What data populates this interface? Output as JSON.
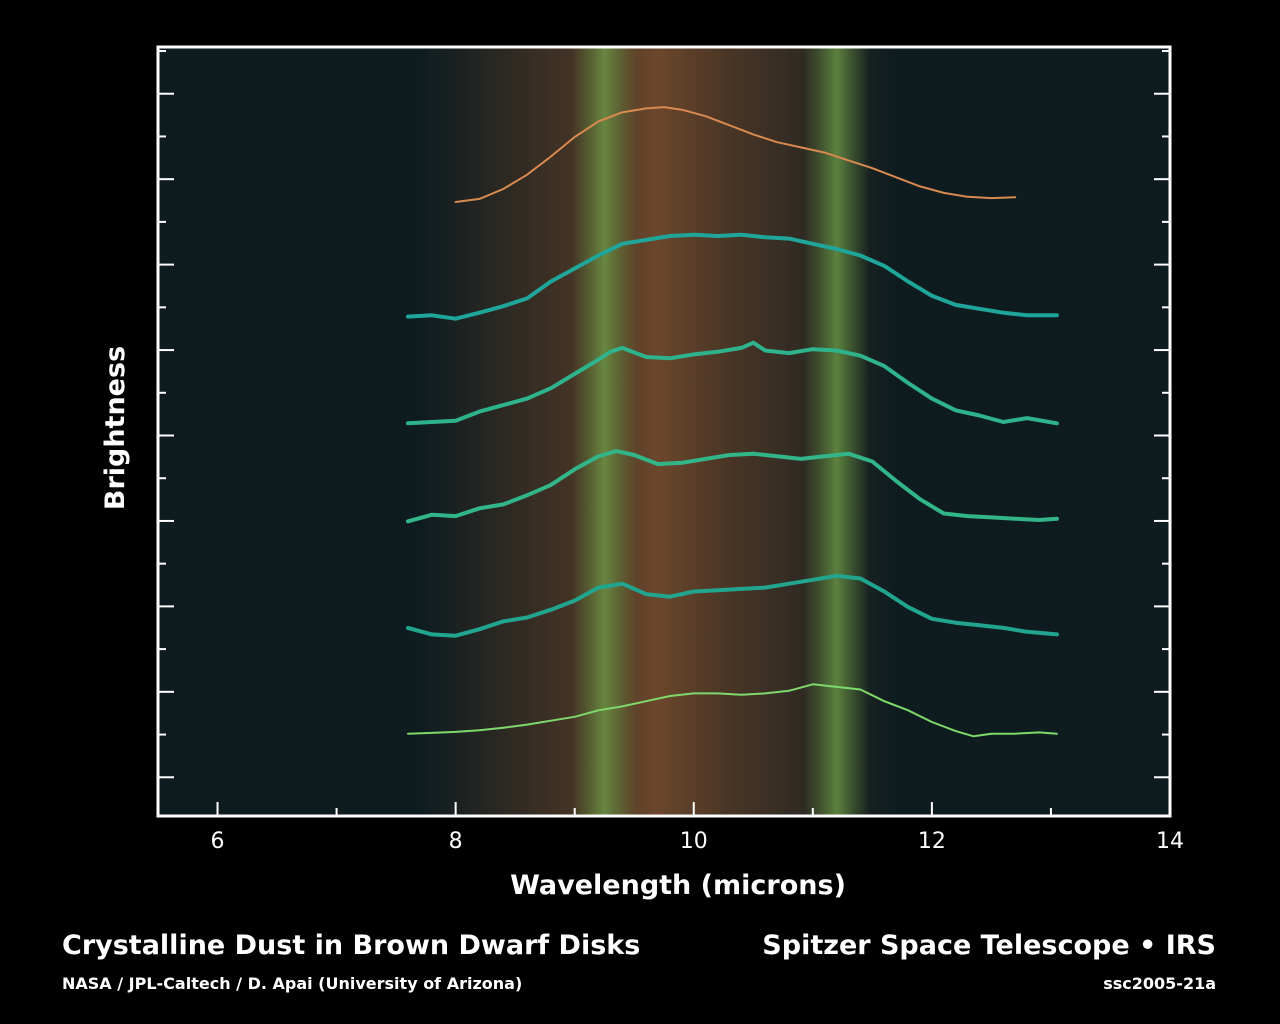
{
  "chart_data": {
    "type": "line",
    "title": "",
    "xlabel": "Wavelength (microns)",
    "ylabel": "Brightness",
    "xlim": [
      5.5,
      14
    ],
    "x_ticks": [
      6,
      8,
      10,
      12,
      14
    ],
    "y_ticks_shown": false,
    "legend": "none",
    "grid": false,
    "highlight_bands": [
      {
        "center": 9.7,
        "halfwidth": 2.0,
        "color": "#7a4a2a"
      },
      {
        "center": 9.25,
        "halfwidth": 0.28,
        "color": "#5f8f3f"
      },
      {
        "center": 11.2,
        "halfwidth": 0.28,
        "color": "#5f8f3f"
      }
    ],
    "series": [
      {
        "color": "#d88a50",
        "thin": true,
        "points": [
          [
            8.0,
            0.5
          ],
          [
            8.2,
            0.62
          ],
          [
            8.4,
            1.0
          ],
          [
            8.6,
            1.55
          ],
          [
            8.8,
            2.25
          ],
          [
            9.0,
            3.0
          ],
          [
            9.2,
            3.6
          ],
          [
            9.4,
            3.95
          ],
          [
            9.6,
            4.1
          ],
          [
            9.75,
            4.15
          ],
          [
            9.9,
            4.05
          ],
          [
            10.1,
            3.8
          ],
          [
            10.3,
            3.45
          ],
          [
            10.5,
            3.1
          ],
          [
            10.7,
            2.8
          ],
          [
            10.9,
            2.6
          ],
          [
            11.1,
            2.4
          ],
          [
            11.3,
            2.1
          ],
          [
            11.5,
            1.8
          ],
          [
            11.7,
            1.45
          ],
          [
            11.9,
            1.1
          ],
          [
            12.1,
            0.85
          ],
          [
            12.3,
            0.7
          ],
          [
            12.5,
            0.65
          ],
          [
            12.7,
            0.68
          ]
        ]
      },
      {
        "color": "#1fa599",
        "thin": false,
        "points": [
          [
            7.6,
            0.4
          ],
          [
            7.8,
            0.45
          ],
          [
            8.0,
            0.32
          ],
          [
            8.2,
            0.55
          ],
          [
            8.4,
            0.8
          ],
          [
            8.6,
            1.1
          ],
          [
            8.8,
            1.75
          ],
          [
            9.0,
            2.25
          ],
          [
            9.2,
            2.75
          ],
          [
            9.4,
            3.2
          ],
          [
            9.6,
            3.35
          ],
          [
            9.8,
            3.5
          ],
          [
            10.0,
            3.55
          ],
          [
            10.2,
            3.5
          ],
          [
            10.4,
            3.55
          ],
          [
            10.6,
            3.45
          ],
          [
            10.8,
            3.4
          ],
          [
            11.0,
            3.2
          ],
          [
            11.2,
            3.0
          ],
          [
            11.4,
            2.75
          ],
          [
            11.6,
            2.35
          ],
          [
            11.8,
            1.75
          ],
          [
            12.0,
            1.2
          ],
          [
            12.2,
            0.85
          ],
          [
            12.4,
            0.7
          ],
          [
            12.6,
            0.55
          ],
          [
            12.8,
            0.45
          ],
          [
            13.05,
            0.45
          ]
        ]
      },
      {
        "color": "#2fb38c",
        "thin": false,
        "points": [
          [
            7.6,
            0.45
          ],
          [
            7.8,
            0.5
          ],
          [
            8.0,
            0.55
          ],
          [
            8.2,
            0.9
          ],
          [
            8.4,
            1.15
          ],
          [
            8.6,
            1.4
          ],
          [
            8.8,
            1.8
          ],
          [
            9.0,
            2.35
          ],
          [
            9.2,
            2.9
          ],
          [
            9.3,
            3.2
          ],
          [
            9.4,
            3.35
          ],
          [
            9.6,
            3.0
          ],
          [
            9.8,
            2.95
          ],
          [
            10.0,
            3.1
          ],
          [
            10.2,
            3.2
          ],
          [
            10.4,
            3.35
          ],
          [
            10.5,
            3.55
          ],
          [
            10.6,
            3.25
          ],
          [
            10.8,
            3.15
          ],
          [
            11.0,
            3.3
          ],
          [
            11.2,
            3.25
          ],
          [
            11.4,
            3.05
          ],
          [
            11.6,
            2.65
          ],
          [
            11.8,
            2.0
          ],
          [
            12.0,
            1.4
          ],
          [
            12.2,
            0.95
          ],
          [
            12.4,
            0.75
          ],
          [
            12.6,
            0.5
          ],
          [
            12.8,
            0.65
          ],
          [
            13.05,
            0.45
          ]
        ]
      },
      {
        "color": "#33b58a",
        "thin": false,
        "points": [
          [
            7.6,
            0.45
          ],
          [
            7.8,
            0.7
          ],
          [
            8.0,
            0.65
          ],
          [
            8.2,
            0.95
          ],
          [
            8.4,
            1.1
          ],
          [
            8.6,
            1.45
          ],
          [
            8.8,
            1.85
          ],
          [
            9.0,
            2.45
          ],
          [
            9.2,
            2.95
          ],
          [
            9.35,
            3.15
          ],
          [
            9.5,
            3.0
          ],
          [
            9.7,
            2.65
          ],
          [
            9.9,
            2.7
          ],
          [
            10.1,
            2.85
          ],
          [
            10.3,
            3.0
          ],
          [
            10.5,
            3.05
          ],
          [
            10.7,
            2.95
          ],
          [
            10.9,
            2.85
          ],
          [
            11.1,
            2.95
          ],
          [
            11.3,
            3.05
          ],
          [
            11.5,
            2.75
          ],
          [
            11.7,
            2.0
          ],
          [
            11.9,
            1.3
          ],
          [
            12.1,
            0.75
          ],
          [
            12.3,
            0.65
          ],
          [
            12.5,
            0.6
          ],
          [
            12.7,
            0.55
          ],
          [
            12.9,
            0.5
          ],
          [
            13.05,
            0.55
          ]
        ]
      },
      {
        "color": "#22a58f",
        "thin": false,
        "points": [
          [
            7.6,
            0.35
          ],
          [
            7.8,
            0.1
          ],
          [
            8.0,
            0.05
          ],
          [
            8.2,
            0.3
          ],
          [
            8.4,
            0.6
          ],
          [
            8.6,
            0.75
          ],
          [
            8.8,
            1.05
          ],
          [
            9.0,
            1.4
          ],
          [
            9.2,
            1.9
          ],
          [
            9.4,
            2.05
          ],
          [
            9.6,
            1.65
          ],
          [
            9.8,
            1.55
          ],
          [
            10.0,
            1.75
          ],
          [
            10.2,
            1.8
          ],
          [
            10.4,
            1.85
          ],
          [
            10.6,
            1.9
          ],
          [
            10.8,
            2.05
          ],
          [
            11.0,
            2.2
          ],
          [
            11.2,
            2.35
          ],
          [
            11.4,
            2.25
          ],
          [
            11.6,
            1.75
          ],
          [
            11.8,
            1.15
          ],
          [
            12.0,
            0.7
          ],
          [
            12.2,
            0.55
          ],
          [
            12.4,
            0.45
          ],
          [
            12.6,
            0.35
          ],
          [
            12.8,
            0.2
          ],
          [
            13.05,
            0.1
          ]
        ]
      },
      {
        "color": "#7fd86b",
        "thin": true,
        "points": [
          [
            7.6,
            0.05
          ],
          [
            7.8,
            0.08
          ],
          [
            8.0,
            0.12
          ],
          [
            8.2,
            0.18
          ],
          [
            8.4,
            0.28
          ],
          [
            8.6,
            0.4
          ],
          [
            8.8,
            0.55
          ],
          [
            9.0,
            0.7
          ],
          [
            9.2,
            0.95
          ],
          [
            9.4,
            1.1
          ],
          [
            9.6,
            1.3
          ],
          [
            9.8,
            1.5
          ],
          [
            10.0,
            1.6
          ],
          [
            10.2,
            1.6
          ],
          [
            10.4,
            1.55
          ],
          [
            10.6,
            1.6
          ],
          [
            10.8,
            1.7
          ],
          [
            11.0,
            1.95
          ],
          [
            11.2,
            1.85
          ],
          [
            11.4,
            1.75
          ],
          [
            11.6,
            1.3
          ],
          [
            11.8,
            0.95
          ],
          [
            12.0,
            0.5
          ],
          [
            12.2,
            0.15
          ],
          [
            12.35,
            -0.05
          ],
          [
            12.5,
            0.05
          ],
          [
            12.7,
            0.05
          ],
          [
            12.9,
            0.1
          ],
          [
            13.05,
            0.05
          ]
        ]
      }
    ]
  },
  "captions": {
    "title": "Crystalline Dust in Brown Dwarf Disks",
    "credit": "NASA / JPL-Caltech / D. Apai (University of Arizona)",
    "mission": "Spitzer Space Telescope • IRS",
    "id": "ssc2005-21a"
  }
}
